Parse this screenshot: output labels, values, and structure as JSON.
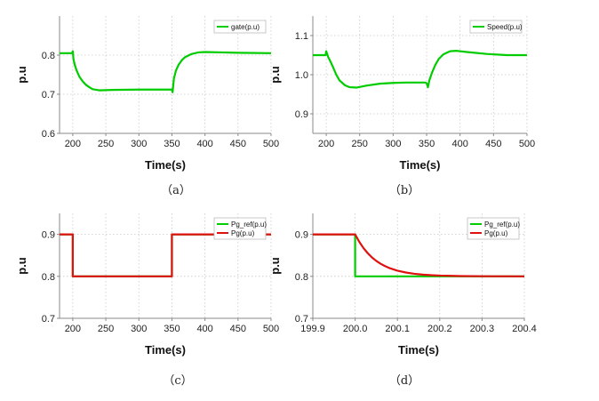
{
  "chart_data": [
    {
      "type": "line",
      "caption": "（a）",
      "xlabel": "Time(s)",
      "ylabel": "p.u",
      "xlim": [
        180,
        500
      ],
      "ylim": [
        0.6,
        0.9
      ],
      "xticks": [
        200,
        250,
        300,
        350,
        400,
        450,
        500
      ],
      "yticks": [
        0.6,
        0.7,
        0.8
      ],
      "ytick_decimals": 1,
      "grid": true,
      "legend": "top-right",
      "series": [
        {
          "name": "gate(p.u)",
          "color": "#00cc00",
          "points": [
            [
              180,
              0.805
            ],
            [
              199,
              0.805
            ],
            [
              200,
              0.81
            ],
            [
              201,
              0.79
            ],
            [
              203,
              0.775
            ],
            [
              206,
              0.76
            ],
            [
              210,
              0.745
            ],
            [
              215,
              0.733
            ],
            [
              220,
              0.724
            ],
            [
              225,
              0.718
            ],
            [
              230,
              0.713
            ],
            [
              240,
              0.71
            ],
            [
              260,
              0.711
            ],
            [
              300,
              0.712
            ],
            [
              349,
              0.712
            ],
            [
              350,
              0.712
            ],
            [
              351,
              0.705
            ],
            [
              353,
              0.74
            ],
            [
              356,
              0.76
            ],
            [
              360,
              0.775
            ],
            [
              365,
              0.787
            ],
            [
              370,
              0.795
            ],
            [
              380,
              0.803
            ],
            [
              390,
              0.807
            ],
            [
              400,
              0.808
            ],
            [
              450,
              0.806
            ],
            [
              500,
              0.805
            ]
          ]
        }
      ]
    },
    {
      "type": "line",
      "caption": "（b）",
      "xlabel": "Time(s)",
      "ylabel": "p.u",
      "xlim": [
        180,
        500
      ],
      "ylim": [
        0.85,
        1.15
      ],
      "xticks": [
        200,
        250,
        300,
        350,
        400,
        450,
        500
      ],
      "yticks": [
        0.9,
        1.0,
        1.1
      ],
      "ytick_decimals": 1,
      "grid": true,
      "legend": "top-right",
      "series": [
        {
          "name": "Speed(p.u)",
          "color": "#00cc00",
          "points": [
            [
              180,
              1.05
            ],
            [
              199,
              1.05
            ],
            [
              200,
              1.06
            ],
            [
              201,
              1.055
            ],
            [
              203,
              1.045
            ],
            [
              206,
              1.035
            ],
            [
              210,
              1.02
            ],
            [
              215,
              1.0
            ],
            [
              220,
              0.985
            ],
            [
              228,
              0.973
            ],
            [
              235,
              0.968
            ],
            [
              245,
              0.967
            ],
            [
              260,
              0.972
            ],
            [
              280,
              0.977
            ],
            [
              300,
              0.979
            ],
            [
              320,
              0.98
            ],
            [
              348,
              0.98
            ],
            [
              350,
              0.978
            ],
            [
              352,
              0.968
            ],
            [
              354,
              0.985
            ],
            [
              358,
              1.005
            ],
            [
              363,
              1.025
            ],
            [
              368,
              1.04
            ],
            [
              375,
              1.052
            ],
            [
              385,
              1.06
            ],
            [
              395,
              1.061
            ],
            [
              410,
              1.058
            ],
            [
              440,
              1.053
            ],
            [
              470,
              1.05
            ],
            [
              500,
              1.05
            ]
          ]
        }
      ]
    },
    {
      "type": "line",
      "caption": "（c）",
      "xlabel": "Time(s)",
      "ylabel": "p.u",
      "xlim": [
        180,
        500
      ],
      "ylim": [
        0.7,
        0.95
      ],
      "xticks": [
        200,
        250,
        300,
        350,
        400,
        450,
        500
      ],
      "yticks": [
        0.7,
        0.8,
        0.9
      ],
      "ytick_decimals": 1,
      "grid": true,
      "legend": "top-right",
      "series": [
        {
          "name": "Pg_ref(p.u)",
          "color": "#00cc00",
          "points": [
            [
              180,
              0.9
            ],
            [
              200,
              0.9
            ],
            [
              200,
              0.8
            ],
            [
              350,
              0.8
            ],
            [
              350,
              0.9
            ],
            [
              500,
              0.9
            ]
          ]
        },
        {
          "name": "Pg(p.u)",
          "color": "#e01010",
          "points": [
            [
              180,
              0.9
            ],
            [
              200,
              0.9
            ],
            [
              200,
              0.8
            ],
            [
              350,
              0.8
            ],
            [
              350,
              0.9
            ],
            [
              500,
              0.9
            ]
          ]
        }
      ]
    },
    {
      "type": "line",
      "caption": "（d）",
      "xlabel": "Time(s)",
      "ylabel": "p.u",
      "xlim": [
        199.9,
        200.4
      ],
      "ylim": [
        0.7,
        0.95
      ],
      "xticks": [
        199.9,
        200.0,
        200.1,
        200.2,
        200.3,
        200.4
      ],
      "yticks": [
        0.7,
        0.8,
        0.9
      ],
      "ytick_decimals": 1,
      "grid": true,
      "legend": "top-right",
      "series": [
        {
          "name": "Pg_ref(p.u)",
          "color": "#00cc00",
          "points": [
            [
              199.9,
              0.9
            ],
            [
              200.0,
              0.9
            ],
            [
              200.0,
              0.8
            ],
            [
              200.4,
              0.8
            ]
          ]
        },
        {
          "name": "Pg(p.u)",
          "color": "#e01010",
          "points": [
            [
              199.9,
              0.9
            ],
            [
              200.0,
              0.9
            ],
            [
              200.01,
              0.8819
            ],
            [
              200.02,
              0.867
            ],
            [
              200.03,
              0.8549
            ],
            [
              200.04,
              0.8449
            ],
            [
              200.05,
              0.8368
            ],
            [
              200.06,
              0.8301
            ],
            [
              200.07,
              0.8247
            ],
            [
              200.08,
              0.8202
            ],
            [
              200.1,
              0.8135
            ],
            [
              200.12,
              0.8091
            ],
            [
              200.14,
              0.8061
            ],
            [
              200.16,
              0.8041
            ],
            [
              200.18,
              0.8027
            ],
            [
              200.2,
              0.8018
            ],
            [
              200.25,
              0.8007
            ],
            [
              200.3,
              0.8002
            ],
            [
              200.4,
              0.8
            ]
          ]
        }
      ]
    }
  ]
}
